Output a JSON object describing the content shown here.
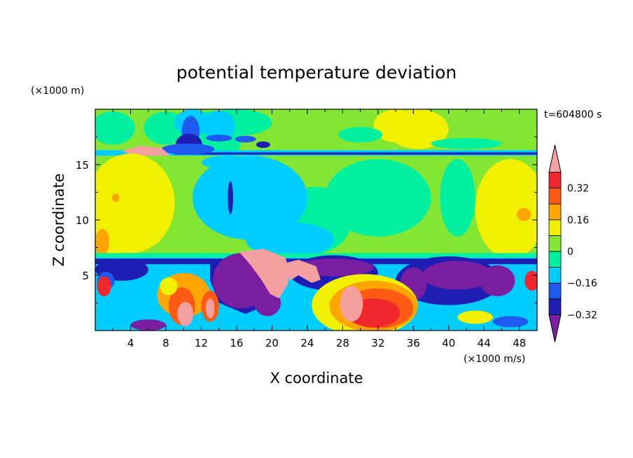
{
  "chart_data": {
    "type": "heatmap",
    "title": "potential temperature deviation",
    "xlabel": "X coordinate",
    "ylabel": "Z coordinate",
    "x_unit": "(×1000 m/s)",
    "y_unit": "(×1000 m)",
    "time_label": "t=604800 s",
    "xlim": [
      0,
      50
    ],
    "ylim": [
      0,
      20
    ],
    "x_ticks": [
      "4",
      "8",
      "12",
      "16",
      "20",
      "24",
      "28",
      "32",
      "36",
      "40",
      "44",
      "48"
    ],
    "y_ticks": [
      "5",
      "10",
      "15"
    ],
    "colorbar": {
      "tick_labels": [
        "0.32",
        "0.16",
        "0",
        "−0.16",
        "−0.32"
      ],
      "level_colors": [
        "#7B1FA2",
        "#1E1EB4",
        "#1E5AF0",
        "#00CDFF",
        "#00F0A0",
        "#82E632",
        "#F0F000",
        "#FFA500",
        "#FF5A14",
        "#F0282D",
        "#F5A0A0"
      ]
    },
    "field_colors": {
      "below_lowest": "#7B1FA2",
      "lt_minus_032": "#1E1EB4",
      "minus_032_to_minus_024": "#1E1EB4",
      "minus_024_to_minus_016": "#1E5AF0",
      "minus_016_to_minus_008": "#00CDFF",
      "minus_008_to_0": "#00F0A0",
      "zero_to_008": "#82E632",
      "008_to_016": "#F0F000",
      "016_to_024": "#FFA500",
      "024_to_032": "#FF5A14",
      "032_to_040": "#F0282D",
      "above_highest": "#F5A0A0"
    }
  }
}
